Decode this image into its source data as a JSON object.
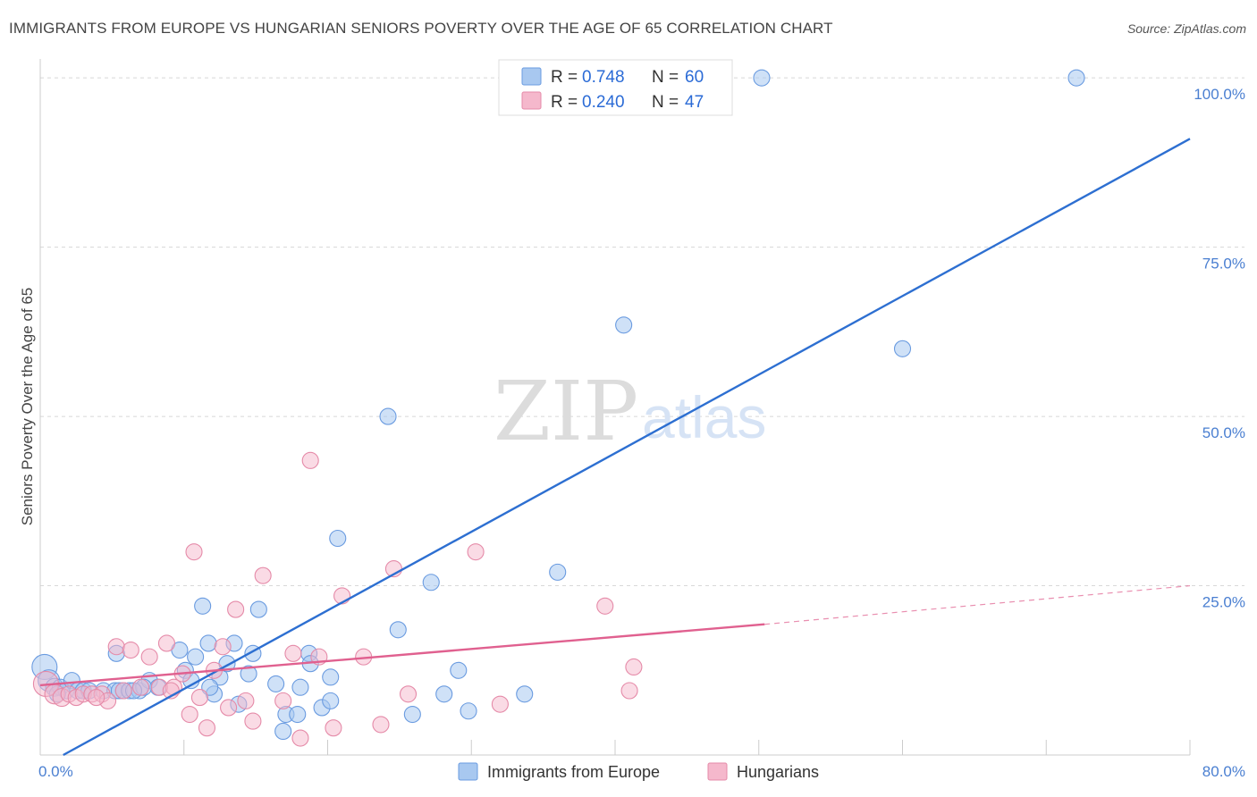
{
  "header": {
    "title": "IMMIGRANTS FROM EUROPE VS HUNGARIAN SENIORS POVERTY OVER THE AGE OF 65 CORRELATION CHART",
    "source": "Source: ZipAtlas.com"
  },
  "watermark": {
    "zip": "ZIP",
    "atlas": "atlas"
  },
  "legend_top": {
    "rows": [
      {
        "r_label": "R =",
        "r_value": "0.748",
        "n_label": "N =",
        "n_value": "60",
        "color": "#a8c8f0"
      },
      {
        "r_label": "R =",
        "r_value": "0.240",
        "n_label": "N =",
        "n_value": "47",
        "color": "#f5b8cc"
      }
    ]
  },
  "legend_bottom": {
    "items": [
      {
        "label": "Immigrants from Europe",
        "color": "#a8c8f0"
      },
      {
        "label": "Hungarians",
        "color": "#f5b8cc"
      }
    ]
  },
  "colors": {
    "blue_fill": "#a8c8f0",
    "blue_stroke": "#6a9be0",
    "blue_line": "#2d6fd1",
    "pink_fill": "#f5b8cc",
    "pink_stroke": "#e58aa8",
    "pink_line": "#e0608f",
    "grid": "#d8d8d8",
    "axis": "#cccccc",
    "tick_label": "#4a7fd1"
  },
  "chart_data": {
    "type": "scatter",
    "title": "IMMIGRANTS FROM EUROPE VS HUNGARIAN SENIORS POVERTY OVER THE AGE OF 65 CORRELATION CHART",
    "xlabel": "",
    "ylabel": "Seniors Poverty Over the Age of 65",
    "xlim": [
      0,
      80
    ],
    "ylim": [
      0,
      102
    ],
    "x_ticks_labeled": [
      {
        "value": 0,
        "label": "0.0%"
      },
      {
        "value": 80,
        "label": "80.0%"
      }
    ],
    "y_ticks": [
      {
        "value": 25,
        "label": "25.0%"
      },
      {
        "value": 50,
        "label": "50.0%"
      },
      {
        "value": 75,
        "label": "75.0%"
      },
      {
        "value": 100,
        "label": "100.0%"
      }
    ],
    "grid": true,
    "legend_placement": "top-center",
    "series": [
      {
        "name": "Immigrants from Europe",
        "r": 0.748,
        "n": 60,
        "trend": {
          "x": [
            1.6,
            80
          ],
          "y": [
            0,
            91
          ]
        },
        "points": [
          [
            0.3,
            13,
            14
          ],
          [
            0.6,
            11,
            12
          ],
          [
            1,
            10,
            10
          ],
          [
            1.4,
            10,
            9
          ],
          [
            1.8,
            9.5,
            9
          ],
          [
            2.2,
            11,
            9
          ],
          [
            2.6,
            9.5,
            9
          ],
          [
            3,
            9.5,
            9
          ],
          [
            3.4,
            9.5,
            9
          ],
          [
            4.4,
            9.5,
            9
          ],
          [
            5.2,
            9.5,
            9
          ],
          [
            5.5,
            9.5,
            9
          ],
          [
            5.8,
            9.5,
            9
          ],
          [
            6.2,
            9.5,
            9
          ],
          [
            6.9,
            9.5,
            9
          ],
          [
            7.6,
            11,
            9
          ],
          [
            8.2,
            10,
            9
          ],
          [
            5.3,
            15,
            9
          ],
          [
            7.2,
            10,
            9
          ],
          [
            9.7,
            15.5,
            9
          ],
          [
            10.1,
            12.5,
            9
          ],
          [
            10.5,
            11,
            9
          ],
          [
            10.8,
            14.5,
            9
          ],
          [
            11.3,
            22,
            9
          ],
          [
            11.7,
            16.5,
            9
          ],
          [
            12.1,
            9,
            9
          ],
          [
            12.5,
            11.5,
            9
          ],
          [
            13,
            13.5,
            9
          ],
          [
            13.5,
            16.5,
            9
          ],
          [
            13.8,
            7.5,
            9
          ],
          [
            14.5,
            12,
            9
          ],
          [
            14.8,
            15,
            9
          ],
          [
            15.2,
            21.5,
            9
          ],
          [
            16.4,
            10.5,
            9
          ],
          [
            17.1,
            6,
            9
          ],
          [
            17.9,
            6,
            9
          ],
          [
            18.1,
            10,
            9
          ],
          [
            18.7,
            15,
            9
          ],
          [
            18.8,
            13.5,
            9
          ],
          [
            19.6,
            7,
            9
          ],
          [
            16.9,
            3.5,
            9
          ],
          [
            20.2,
            8,
            9
          ],
          [
            20.2,
            11.5,
            9
          ],
          [
            20.7,
            32,
            9
          ],
          [
            24.2,
            50,
            9
          ],
          [
            24.9,
            18.5,
            9
          ],
          [
            25.9,
            6,
            9
          ],
          [
            27.2,
            25.5,
            9
          ],
          [
            28.1,
            9,
            9
          ],
          [
            29.1,
            12.5,
            9
          ],
          [
            29.8,
            6.5,
            9
          ],
          [
            33.7,
            9,
            9
          ],
          [
            36,
            27,
            9
          ],
          [
            40.6,
            63.5,
            9
          ],
          [
            50.2,
            100,
            9
          ],
          [
            60,
            60,
            9
          ],
          [
            72.1,
            100,
            9
          ],
          [
            1.2,
            9,
            9
          ],
          [
            6.5,
            9.5,
            9
          ],
          [
            11.8,
            10,
            9
          ]
        ]
      },
      {
        "name": "Hungarians",
        "r": 0.24,
        "n": 47,
        "trend": {
          "x": [
            0,
            50.4
          ],
          "y": [
            10.3,
            19.3
          ]
        },
        "trend_dashed": {
          "x": [
            50.4,
            80
          ],
          "y": [
            19.3,
            25
          ]
        },
        "points": [
          [
            0.4,
            10.5,
            14
          ],
          [
            1,
            9,
            11
          ],
          [
            1.5,
            8.5,
            10
          ],
          [
            2,
            9,
            9
          ],
          [
            2.5,
            8.5,
            9
          ],
          [
            3,
            9,
            9
          ],
          [
            3.6,
            9,
            9
          ],
          [
            4.3,
            9,
            9
          ],
          [
            4.7,
            8,
            9
          ],
          [
            5.3,
            16,
            9
          ],
          [
            6.3,
            15.5,
            9
          ],
          [
            7,
            10,
            9
          ],
          [
            7.6,
            14.5,
            9
          ],
          [
            8.3,
            10,
            9
          ],
          [
            8.8,
            16.5,
            9
          ],
          [
            9.3,
            10,
            9
          ],
          [
            9.9,
            12,
            9
          ],
          [
            10.4,
            6,
            9
          ],
          [
            10.7,
            30,
            9
          ],
          [
            11.1,
            8.5,
            9
          ],
          [
            11.6,
            4,
            9
          ],
          [
            12.1,
            12.5,
            9
          ],
          [
            12.7,
            16,
            9
          ],
          [
            13.1,
            7,
            9
          ],
          [
            13.6,
            21.5,
            9
          ],
          [
            14.3,
            8,
            9
          ],
          [
            14.8,
            5,
            9
          ],
          [
            15.5,
            26.5,
            9
          ],
          [
            16.9,
            8,
            9
          ],
          [
            17.6,
            15,
            9
          ],
          [
            18.1,
            2.5,
            9
          ],
          [
            18.8,
            43.5,
            9
          ],
          [
            19.4,
            14.5,
            9
          ],
          [
            20.4,
            4,
            9
          ],
          [
            21,
            23.5,
            9
          ],
          [
            22.5,
            14.5,
            9
          ],
          [
            23.7,
            4.5,
            9
          ],
          [
            24.6,
            27.5,
            9
          ],
          [
            25.6,
            9,
            9
          ],
          [
            30.3,
            30,
            9
          ],
          [
            32,
            7.5,
            9
          ],
          [
            39.3,
            22,
            9
          ],
          [
            41,
            9.5,
            9
          ],
          [
            41.3,
            13,
            9
          ],
          [
            3.9,
            8.5,
            9
          ],
          [
            5.8,
            9.5,
            9
          ],
          [
            9.1,
            9.5,
            9
          ]
        ]
      }
    ]
  }
}
